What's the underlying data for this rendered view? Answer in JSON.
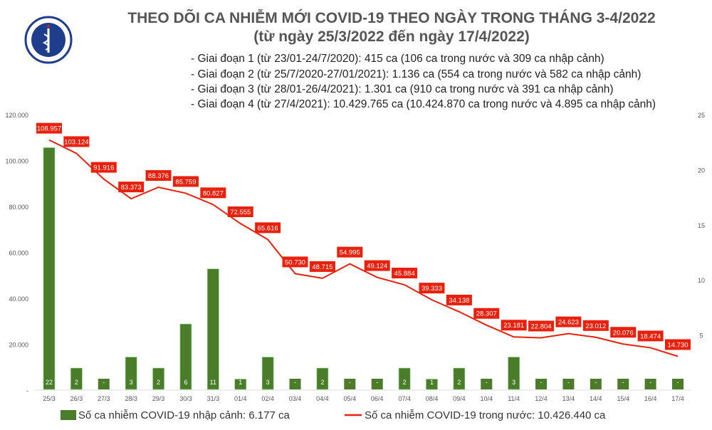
{
  "header": {
    "logo_text": "BỘ Y TẾ – MINISTRY OF HEALTH",
    "title": "THEO DÕI CA NHIỄM MỚI COVID-19 THEO NGÀY TRONG THÁNG 3-4/2022",
    "subtitle": "(từ ngày 25/3/2022 đến ngày 17/4/2022)",
    "bullets": [
      "- Giai đoạn 1 (từ 23/01-24/7/2020): 415 ca (106 ca trong nước và 309 ca nhập cảnh)",
      "- Giai đoạn 2 (từ 25/7/2020-27/01/2021): 1.136 ca (554 ca trong nước và 582 ca nhập cảnh)",
      "- Giai đoạn 3 (từ 28/01-26/4/2021): 1.301 ca (910 ca trong nước và 391 ca nhập cảnh)",
      "- Giai đoạn 4 (từ 27/4/2021): 10.429.765 ca (10.424.870 ca trong nước và 4.895 ca nhập cảnh)"
    ]
  },
  "chart_data": {
    "type": "bar+line",
    "categories": [
      "25/3",
      "26/3",
      "27/3",
      "28/3",
      "29/3",
      "30/3",
      "31/3",
      "01/4",
      "02/4",
      "03/4",
      "04/4",
      "05/4",
      "06/4",
      "07/4",
      "08/4",
      "09/4",
      "10/4",
      "11/4",
      "12/4",
      "13/4",
      "14/4",
      "15/4",
      "16/4",
      "17/4"
    ],
    "left_axis": {
      "range": [
        0,
        120000
      ],
      "ticks": [
        "-",
        "20.000",
        "40.000",
        "60.000",
        "80.000",
        "100.000",
        "120.000"
      ]
    },
    "right_axis": {
      "range": [
        0,
        25
      ],
      "ticks": [
        "0",
        "5",
        "10",
        "15",
        "20",
        "25"
      ]
    },
    "series": [
      {
        "name": "Số ca nhiễm COVID-19 nhập cảnh: 6.177 ca",
        "type": "bar",
        "axis": "right",
        "color": "#4a7c2a",
        "values": [
          22,
          2,
          0,
          3,
          2,
          6,
          11,
          1,
          3,
          0,
          2,
          0,
          0,
          2,
          1,
          2,
          0,
          3,
          0,
          0,
          0,
          0,
          0,
          0
        ],
        "labels": [
          "22",
          "2",
          "-",
          "3",
          "2",
          "6",
          "11",
          "1",
          "3",
          "-",
          "2",
          "-",
          "-",
          "2",
          "1",
          "2",
          "-",
          "3",
          "-",
          "-",
          "-",
          "-",
          "-",
          "-"
        ]
      },
      {
        "name": "Số ca nhiễm COVID-19 trong nước: 10.426.440 ca",
        "type": "line",
        "axis": "left",
        "color": "#e8200c",
        "values": [
          108957,
          103124,
          91916,
          83373,
          88376,
          85759,
          80827,
          72555,
          65616,
          50730,
          48715,
          54995,
          49124,
          45884,
          39333,
          34138,
          28307,
          23181,
          22804,
          24623,
          23012,
          20076,
          18474,
          14730
        ],
        "labels": [
          "108.957",
          "103.124",
          "91.916",
          "83.373",
          "88.376",
          "85.759",
          "80.827",
          "72.555",
          "65.616",
          "50.730",
          "48.715",
          "54.995",
          "49.124",
          "45.884",
          "39.333",
          "34.138",
          "28.307",
          "23.181",
          "22.804",
          "24.623",
          "23.012",
          "20.076",
          "18.474",
          "14.730"
        ]
      }
    ],
    "legend": "bottom"
  }
}
